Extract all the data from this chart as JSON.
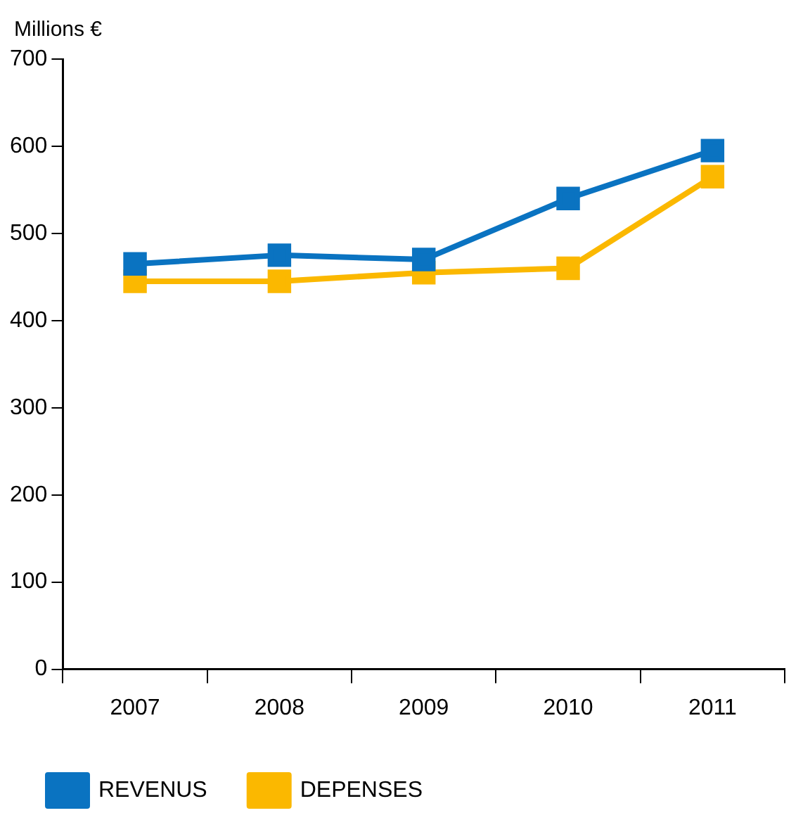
{
  "chart_data": {
    "type": "line",
    "ylabel": "Millions €",
    "categories": [
      "2007",
      "2008",
      "2009",
      "2010",
      "2011"
    ],
    "series": [
      {
        "name": "REVENUS",
        "color": "#0a73c1",
        "values": [
          465,
          475,
          470,
          540,
          595
        ]
      },
      {
        "name": "DEPENSES",
        "color": "#fbb800",
        "values": [
          445,
          445,
          455,
          460,
          565
        ]
      }
    ],
    "ylim": [
      0,
      700
    ],
    "yticks": [
      0,
      100,
      200,
      300,
      400,
      500,
      600,
      700
    ],
    "grid": false,
    "legend": "bottom",
    "marker": "square",
    "line_style": "solid"
  }
}
